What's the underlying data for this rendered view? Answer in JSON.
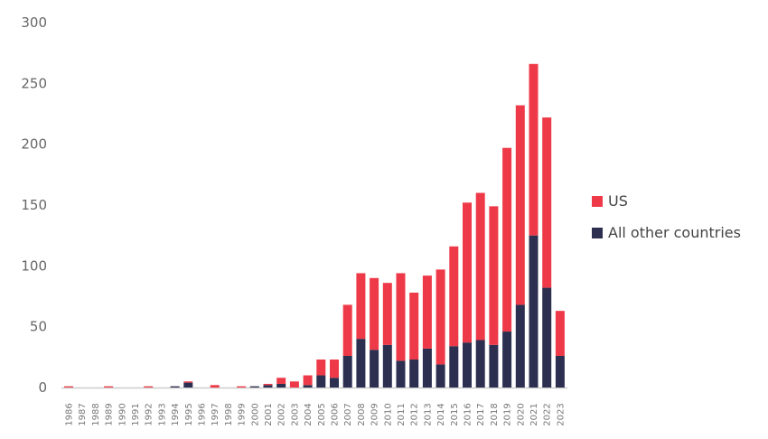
{
  "chart_data": {
    "type": "bar",
    "stacked": true,
    "title": "",
    "xlabel": "",
    "ylabel": "",
    "ylim": [
      0,
      300
    ],
    "yticks": [
      "0",
      "50",
      "100",
      "150",
      "200",
      "250",
      "300"
    ],
    "grid": false,
    "legend_position": "right",
    "categories": [
      "1986",
      "1987",
      "1988",
      "1989",
      "1990",
      "1991",
      "1992",
      "1993",
      "1994",
      "1995",
      "1996",
      "1997",
      "1998",
      "1999",
      "2000",
      "2001",
      "2002",
      "2003",
      "2004",
      "2005",
      "2006",
      "2007",
      "2008",
      "2009",
      "2010",
      "2011",
      "2012",
      "2013",
      "2014",
      "2015",
      "2016",
      "2017",
      "2018",
      "2019",
      "2020",
      "2021",
      "2022",
      "2023"
    ],
    "series": [
      {
        "name": "All other countries",
        "color": "#2c2f50",
        "values": [
          0,
          0,
          0,
          0,
          0,
          0,
          0,
          0,
          1,
          4,
          0,
          0,
          0,
          0,
          1,
          2,
          3,
          0,
          2,
          10,
          8,
          26,
          40,
          31,
          35,
          22,
          23,
          32,
          19,
          34,
          37,
          39,
          35,
          46,
          68,
          125,
          82,
          26
        ]
      },
      {
        "name": "US",
        "color": "#ee3a48",
        "values": [
          1,
          0,
          0,
          1,
          0,
          0,
          1,
          0,
          0,
          1,
          0,
          2,
          0,
          1,
          0,
          1,
          5,
          5,
          8,
          13,
          15,
          42,
          54,
          59,
          51,
          72,
          55,
          60,
          78,
          82,
          115,
          121,
          114,
          151,
          164,
          141,
          140,
          37
        ]
      }
    ]
  }
}
